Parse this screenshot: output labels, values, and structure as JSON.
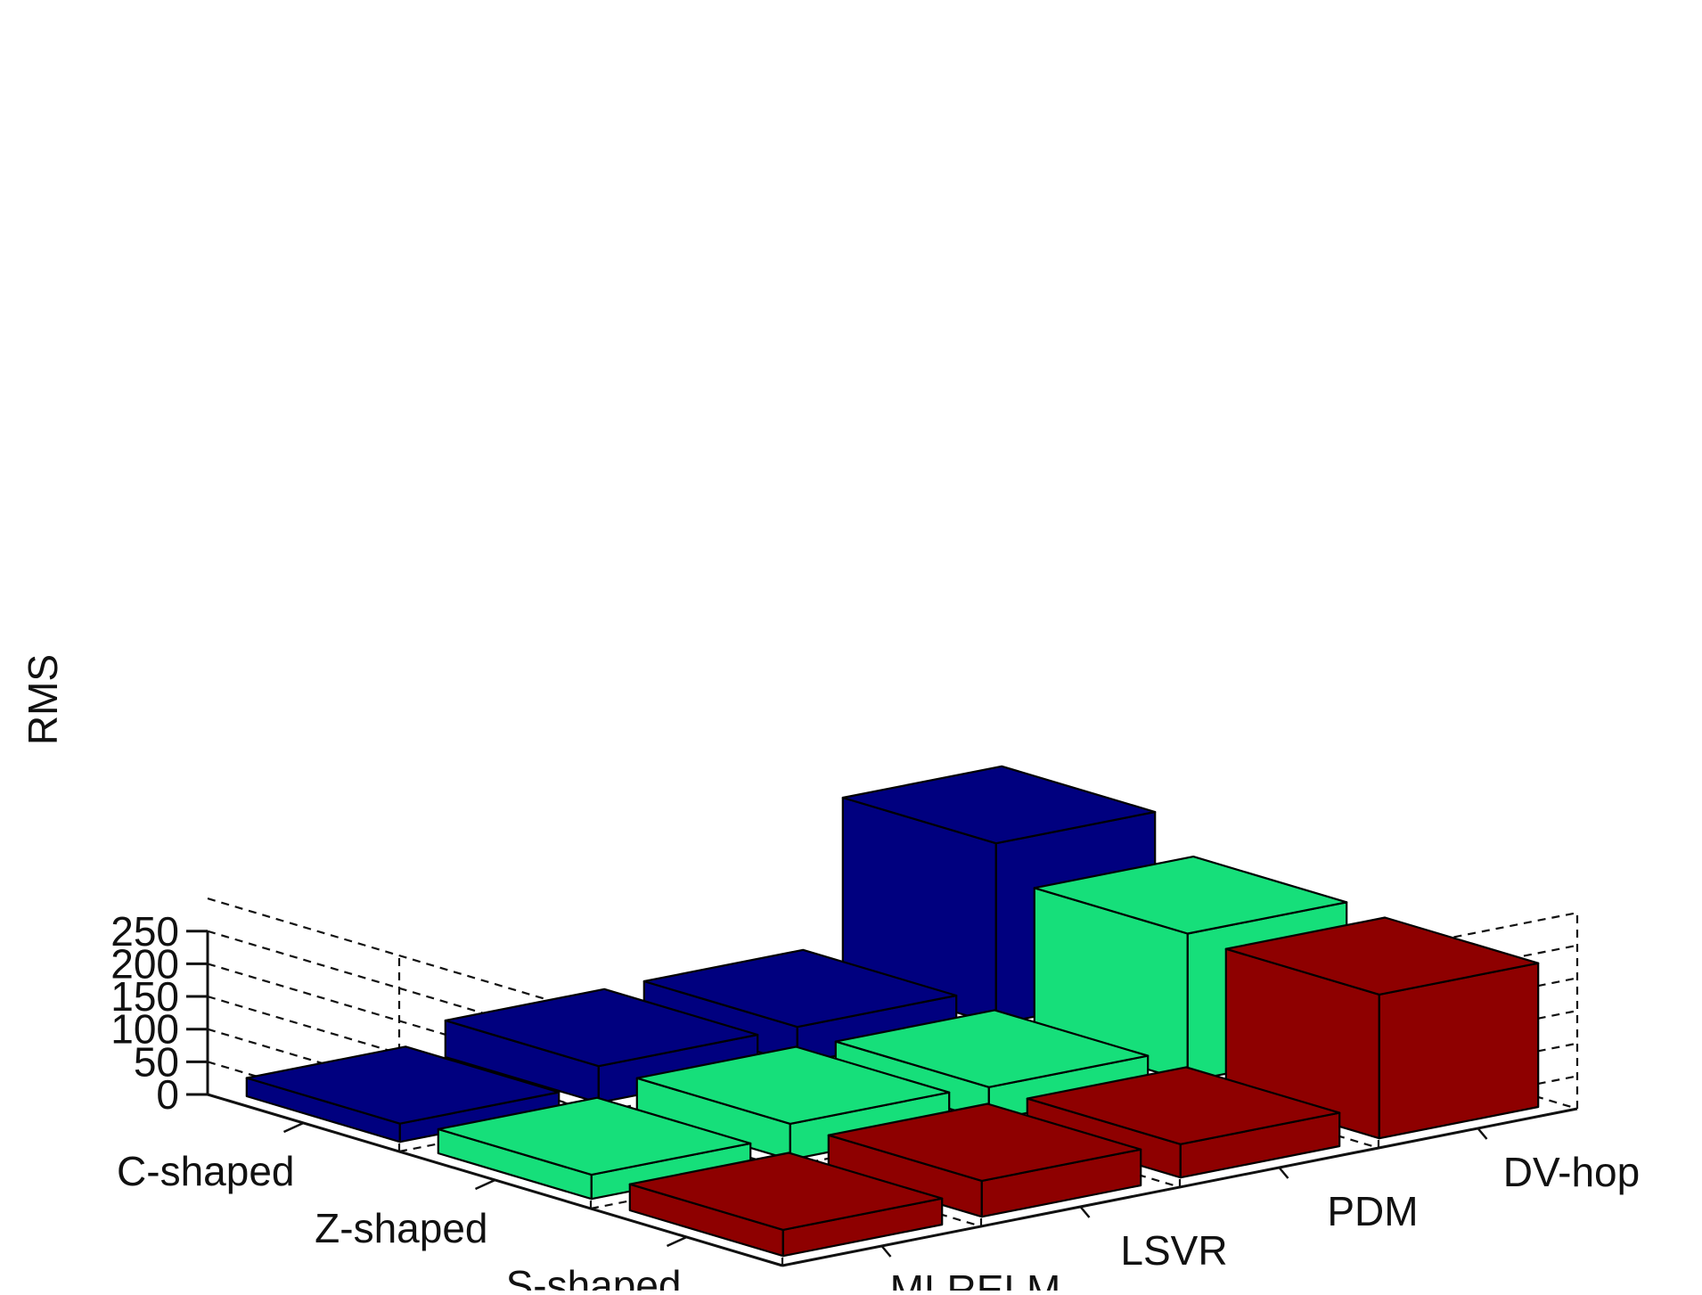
{
  "chart_data": {
    "type": "bar3d",
    "ylabel": "RMS",
    "yticks": [
      0,
      50,
      100,
      150,
      200,
      250
    ],
    "zlim": [
      0,
      250
    ],
    "grid": true,
    "legend": "none",
    "methods": [
      "MLRELM",
      "LSVR",
      "PDM",
      "DV-hop"
    ],
    "shapes": [
      "C-shaped",
      "Z-shaped",
      "S-shaped"
    ],
    "series": [
      {
        "name": "C-shaped",
        "color": "#00007F",
        "values": [
          28,
          56,
          56,
          277
        ]
      },
      {
        "name": "Z-shaped",
        "color": "#16DF7A",
        "values": [
          37,
          55,
          51,
          226
        ]
      },
      {
        "name": "S-shaped",
        "color": "#8E0000",
        "values": [
          40,
          55,
          51,
          220
        ]
      }
    ]
  }
}
